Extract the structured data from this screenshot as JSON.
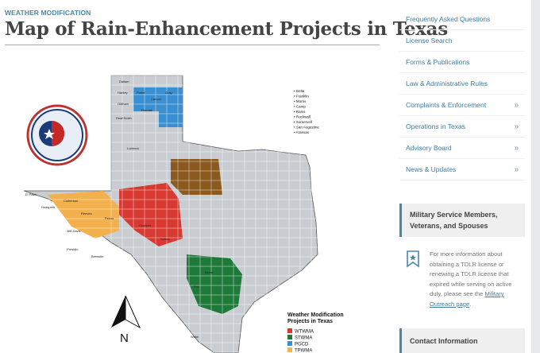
{
  "header": {
    "kicker": "WEATHER MODIFICATION",
    "title": "Map of Rain-Enhancement Projects in Texas"
  },
  "map": {
    "seal_text": "TEXAS WEATHER MODIFICATION ASSOCIATION",
    "small_counties": [
      "Delta",
      "Franklin",
      "Morris",
      "Camp",
      "Rains",
      "Rockwall",
      "Somervell",
      "San Augustine",
      "Aransas"
    ],
    "north_label": "N",
    "legend_title": "Weather Modification Projects in Texas",
    "legend": [
      {
        "label": "WTWMA",
        "color": "#d63a32"
      },
      {
        "label": "STWMA",
        "color": "#1f7a3a"
      },
      {
        "label": "PGCD",
        "color": "#3a8fd0"
      },
      {
        "label": "TPWMA",
        "color": "#f3b14e"
      },
      {
        "label": "SPWMA",
        "color": "#8a5a1e"
      }
    ],
    "region_labels": [
      "El Paso",
      "Hudspeth",
      "Culberson",
      "Reeves",
      "Pecos",
      "Jeff Davis",
      "Presidio",
      "Brewster",
      "Dallam",
      "Hartley",
      "Oldham",
      "Deaf Smith",
      "Potter",
      "Carson",
      "Gray",
      "Randall",
      "Lubbock",
      "Crockett",
      "Sutton",
      "Bexar",
      "Frio",
      "Webb"
    ]
  },
  "nav": {
    "items": [
      {
        "label": "Frequently Asked Questions",
        "has_submenu": false
      },
      {
        "label": "License Search",
        "has_submenu": false
      },
      {
        "label": "Forms & Publications",
        "has_submenu": false
      },
      {
        "label": "Law & Administrative Rules",
        "has_submenu": false
      },
      {
        "label": "Complaints & Enforcement",
        "has_submenu": true
      },
      {
        "label": "Operations in Texas",
        "has_submenu": true
      },
      {
        "label": "Advisory Board",
        "has_submenu": true
      },
      {
        "label": "News & Updates",
        "has_submenu": true
      }
    ],
    "chevron": "»"
  },
  "military": {
    "title": "Military Service Members, Veterans, and Spouses",
    "text": "For more information about obtaining a TDLR license or renewing a TDLR license that expired while serving on active duty, please see the ",
    "link": "Military Outreach page",
    "after": "."
  },
  "contact": {
    "title": "Contact Information"
  }
}
